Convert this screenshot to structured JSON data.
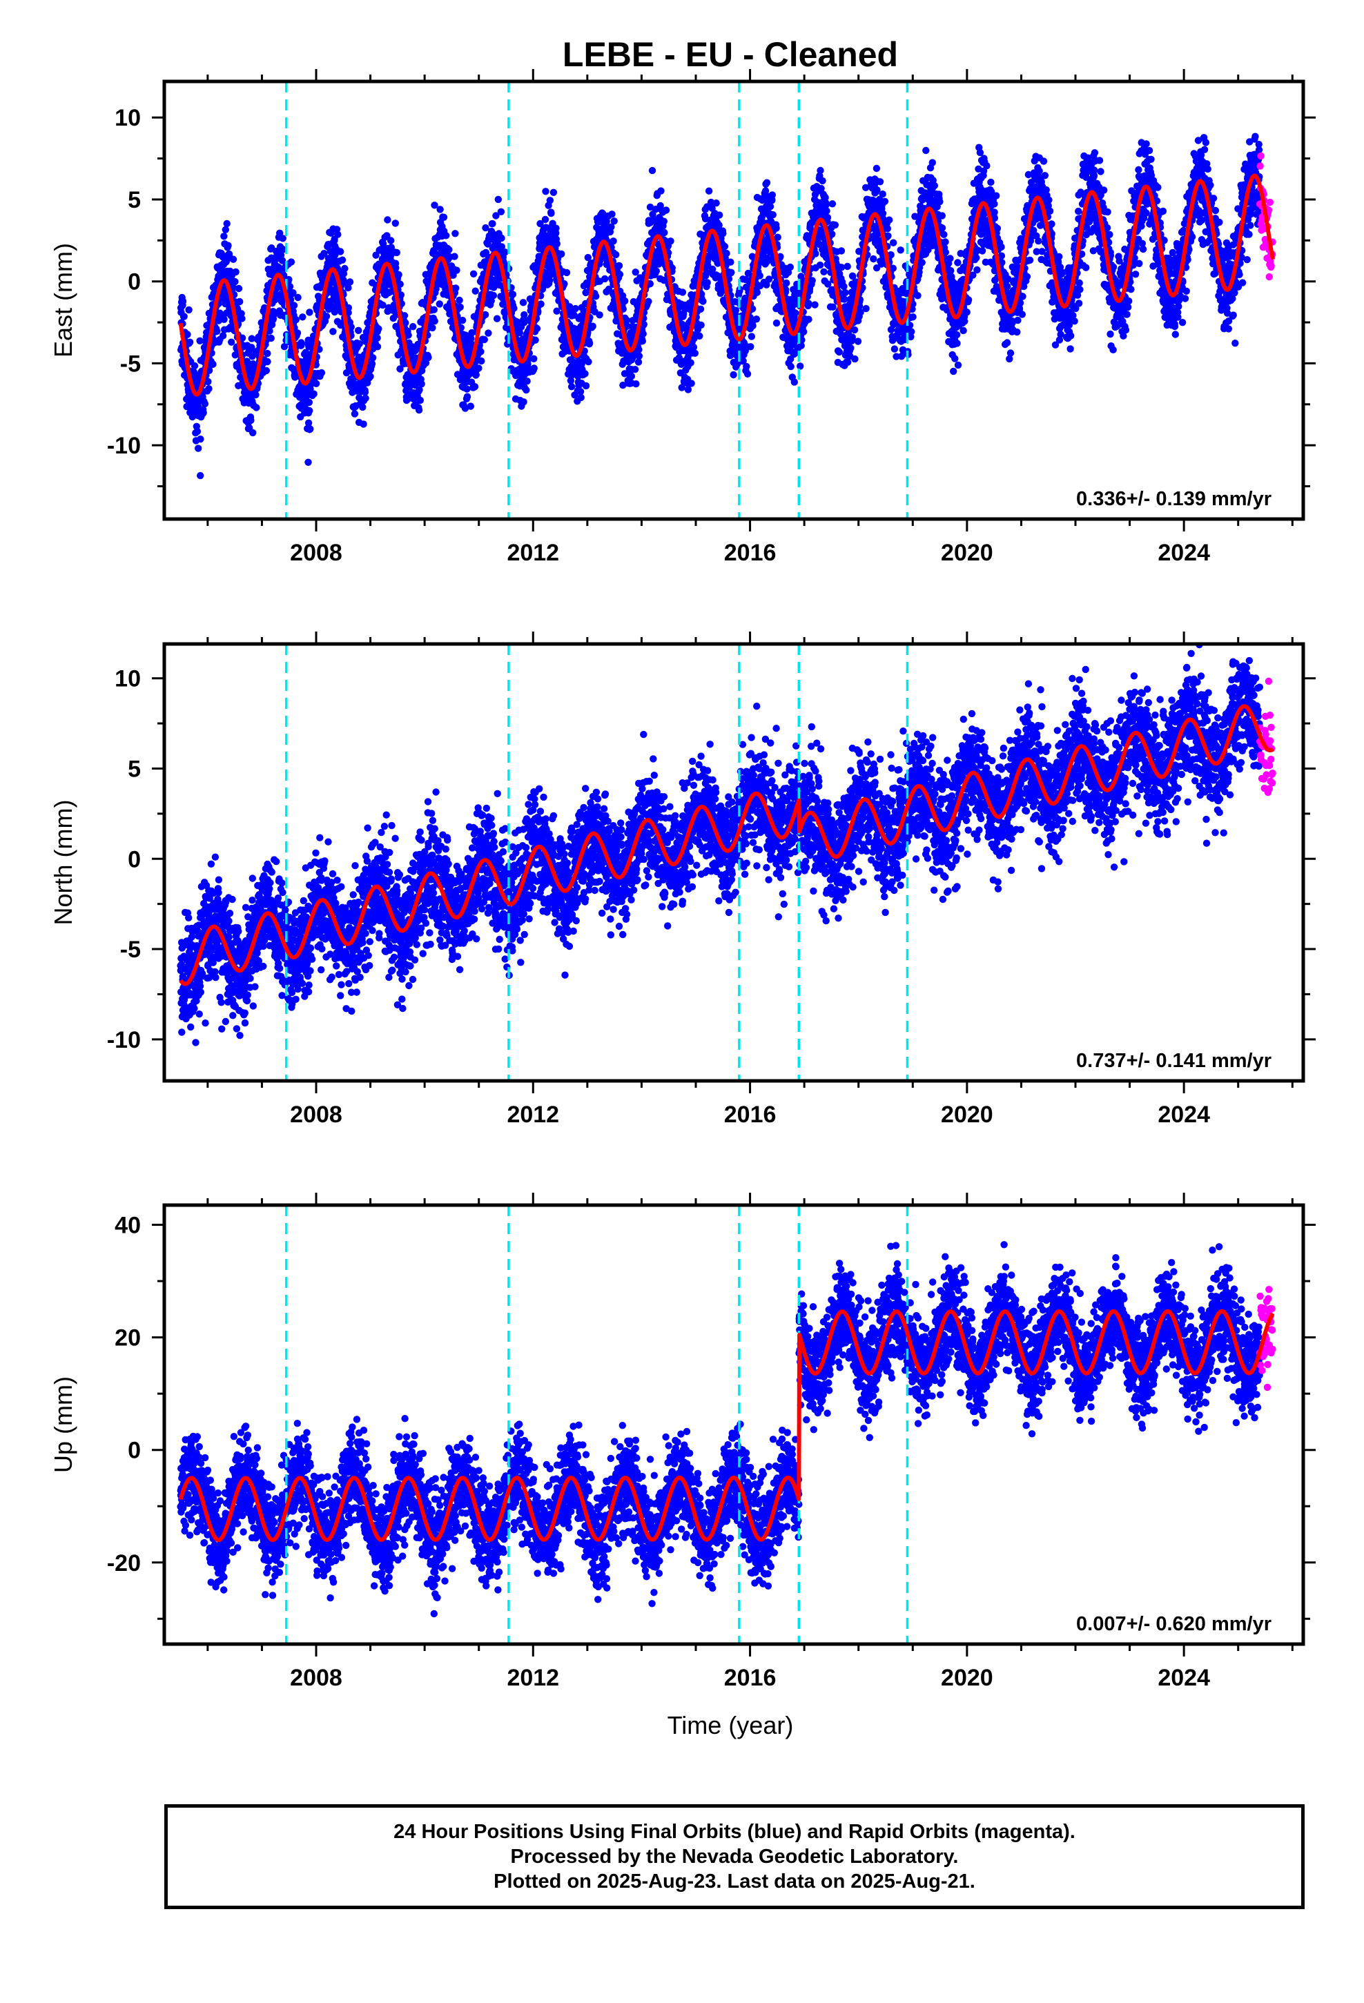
{
  "figure": {
    "title": "LEBE  - EU - Cleaned",
    "xlabel": "Time (year)"
  },
  "chart_data": [
    {
      "type": "scatter",
      "ylabel": "East (mm)",
      "xlim": [
        2005.2,
        2026.2
      ],
      "ylim": [
        -14.5,
        12.2
      ],
      "yticks": [
        10,
        5,
        0,
        -5,
        -10
      ],
      "xticks": [
        2008,
        2012,
        2016,
        2020,
        2024
      ],
      "rate_label": "0.336+/- 0.139 mm/yr",
      "trend": {
        "start_value": -3.6,
        "rate": 0.336,
        "start_year": 2005.5
      },
      "seasonal": {
        "annual_amplitude": 3.4,
        "annual_phase": -0.05
      },
      "offsets": [],
      "scatter_sd": 1.3,
      "series": [
        {
          "name": "Final Orbits (blue)",
          "x_range": [
            2005.5,
            2025.4
          ],
          "color": "#0000ff"
        },
        {
          "name": "Rapid Orbits (magenta)",
          "x_range": [
            2025.4,
            2025.64
          ],
          "color": "#ff00ff"
        },
        {
          "name": "model",
          "color": "#ff0000"
        }
      ]
    },
    {
      "type": "scatter",
      "ylabel": "North (mm)",
      "xlim": [
        2005.2,
        2026.2
      ],
      "ylim": [
        -12.3,
        11.9
      ],
      "yticks": [
        10,
        5,
        0,
        -5,
        -10
      ],
      "xticks": [
        2008,
        2012,
        2016,
        2020,
        2024
      ],
      "rate_label": "0.737+/- 0.141 mm/yr",
      "trend": {
        "start_value": -5.6,
        "rate": 0.737,
        "start_year": 2005.5
      },
      "seasonal": {
        "annual_amplitude": 1.4,
        "annual_phase": 0.15
      },
      "offsets": [
        {
          "year": 2016.9,
          "size": -1.8
        }
      ],
      "scatter_sd": 1.5,
      "series": [
        {
          "name": "Final Orbits (blue)",
          "x_range": [
            2005.5,
            2025.4
          ],
          "color": "#0000ff"
        },
        {
          "name": "Rapid Orbits (magenta)",
          "x_range": [
            2025.4,
            2025.64
          ],
          "color": "#ff00ff"
        },
        {
          "name": "model",
          "color": "#ff0000"
        }
      ]
    },
    {
      "type": "scatter",
      "ylabel": "Up (mm)",
      "xlim": [
        2005.2,
        2026.2
      ],
      "ylim": [
        -34.5,
        43.5
      ],
      "yticks": [
        40,
        20,
        0,
        -20
      ],
      "xticks": [
        2008,
        2012,
        2016,
        2020,
        2024
      ],
      "rate_label": "0.007+/- 0.620 mm/yr",
      "trend": {
        "start_value": -10.5,
        "rate": 0.007,
        "start_year": 2005.5
      },
      "seasonal": {
        "annual_amplitude": 5.5,
        "annual_phase": 0.55
      },
      "offsets": [
        {
          "year": 2016.9,
          "size": 29.5
        }
      ],
      "scatter_sd": 4.2,
      "series": [
        {
          "name": "Final Orbits (blue)",
          "x_range": [
            2005.5,
            2025.4
          ],
          "color": "#0000ff"
        },
        {
          "name": "Rapid Orbits (magenta)",
          "x_range": [
            2025.4,
            2025.64
          ],
          "color": "#ff00ff"
        },
        {
          "name": "model",
          "color": "#ff0000"
        }
      ]
    }
  ],
  "equipment_changes": [
    2007.45,
    2011.55,
    2015.8,
    2016.9,
    2018.9
  ],
  "colors": {
    "final": "#0000ff",
    "rapid": "#ff00ff",
    "model": "#ff0000",
    "equipment": "#00e5ee"
  },
  "caption": {
    "line1": "24 Hour Positions Using Final Orbits (blue) and Rapid Orbits (magenta).",
    "line2": "Processed by the Nevada Geodetic Laboratory.",
    "line3": "Plotted on 2025-Aug-23. Last data on 2025-Aug-21."
  }
}
